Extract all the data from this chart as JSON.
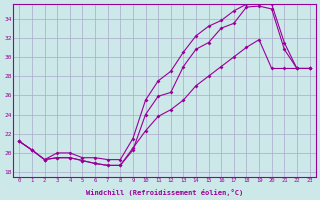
{
  "xlabel": "Windchill (Refroidissement éolien,°C)",
  "ylabel": "",
  "bg_color": "#cce8e8",
  "line_color": "#990099",
  "grid_color": "#aaaacc",
  "xlim": [
    -0.5,
    23.5
  ],
  "ylim": [
    17.5,
    35.5
  ],
  "xticks": [
    0,
    1,
    2,
    3,
    4,
    5,
    6,
    7,
    8,
    9,
    10,
    11,
    12,
    13,
    14,
    15,
    16,
    17,
    18,
    19,
    20,
    21,
    22,
    23
  ],
  "yticks": [
    18,
    20,
    22,
    24,
    26,
    28,
    30,
    32,
    34
  ],
  "line1_x": [
    0,
    1,
    2,
    3,
    4,
    5,
    6,
    7,
    8,
    9,
    10,
    11,
    12,
    13,
    14,
    15,
    16,
    17,
    18,
    19,
    20,
    21,
    22,
    23
  ],
  "line1_y": [
    21.2,
    20.3,
    19.3,
    19.5,
    19.5,
    19.2,
    18.9,
    18.7,
    18.7,
    20.3,
    24.0,
    25.9,
    26.3,
    29.0,
    30.8,
    31.5,
    33.0,
    33.5,
    35.2,
    35.3,
    35.0,
    30.8,
    28.8,
    28.8
  ],
  "line2_x": [
    0,
    1,
    2,
    3,
    4,
    5,
    6,
    7,
    8,
    9,
    10,
    11,
    12,
    13,
    14,
    15,
    16,
    17,
    18,
    19,
    20,
    21,
    22,
    23
  ],
  "line2_y": [
    21.2,
    20.3,
    19.3,
    20.0,
    20.0,
    19.5,
    19.5,
    19.3,
    19.3,
    21.5,
    25.5,
    27.5,
    28.5,
    30.5,
    32.2,
    33.2,
    33.8,
    34.8,
    35.5,
    35.5,
    35.5,
    31.5,
    28.8,
    28.8
  ],
  "line3_x": [
    0,
    1,
    2,
    3,
    4,
    5,
    6,
    7,
    8,
    9,
    10,
    11,
    12,
    13,
    14,
    15,
    16,
    17,
    18,
    19,
    20,
    21,
    22,
    23
  ],
  "line3_y": [
    21.2,
    20.3,
    19.3,
    19.5,
    19.5,
    19.2,
    18.9,
    18.7,
    18.7,
    20.5,
    22.3,
    23.8,
    24.5,
    25.5,
    27.0,
    28.0,
    29.0,
    30.0,
    31.0,
    31.8,
    28.8,
    28.8,
    28.8,
    28.8
  ]
}
